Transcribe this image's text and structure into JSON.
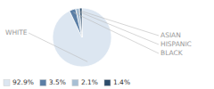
{
  "chart_data": {
    "type": "pie",
    "categories": [
      "WHITE",
      "BLACK",
      "HISPANIC",
      "ASIAN"
    ],
    "values": [
      92.9,
      3.5,
      2.1,
      1.4
    ],
    "value_labels": [
      "92.9%",
      "3.5%",
      "2.1%",
      "1.4%"
    ],
    "colors": [
      "#dce6f1",
      "#5b7fa6",
      "#a8bfd4",
      "#2e4d6b"
    ],
    "legend": "lower left"
  }
}
